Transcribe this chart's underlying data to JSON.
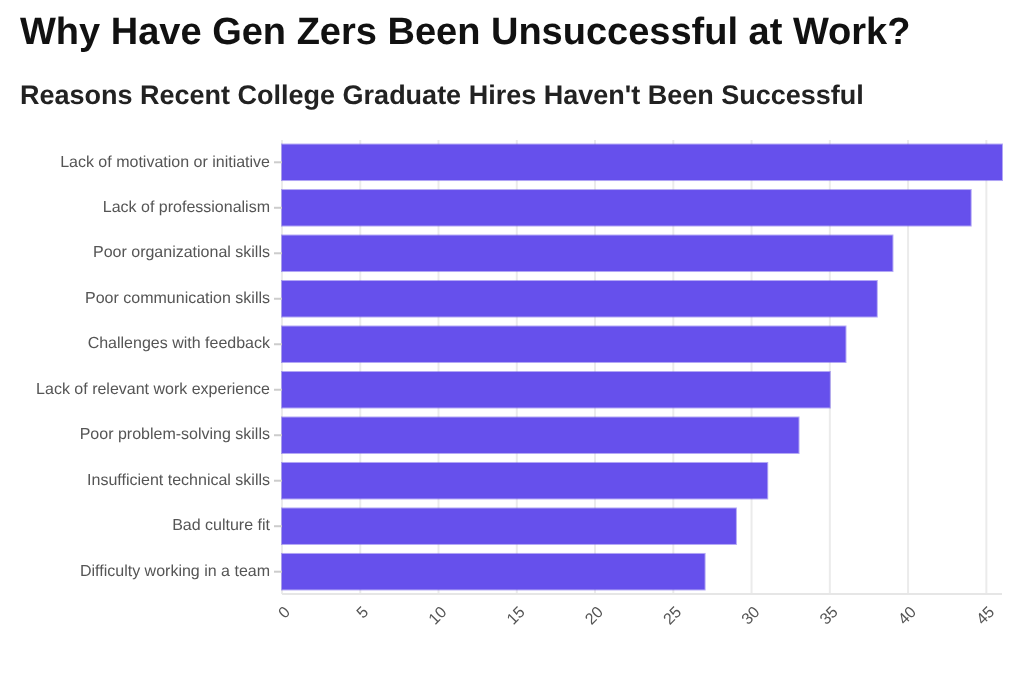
{
  "chart_data": {
    "type": "bar",
    "orientation": "horizontal",
    "title": "Why Have Gen Zers Been Unsuccessful at Work?",
    "subtitle": "Reasons Recent College Graduate Hires Haven't Been Successful",
    "categories": [
      "Lack of motivation or initiative",
      "Lack of professionalism",
      "Poor organizational skills",
      "Poor communication skills",
      "Challenges with feedback",
      "Lack of relevant work experience",
      "Poor problem-solving skills",
      "Insufficient technical skills",
      "Bad culture fit",
      "Difficulty working in a team"
    ],
    "values": [
      46,
      44,
      39,
      38,
      36,
      35,
      33,
      31,
      29,
      27
    ],
    "color": "#6650ec",
    "xlim": [
      0,
      46
    ],
    "xticks": [
      0,
      5,
      10,
      15,
      20,
      25,
      30,
      35,
      40,
      45
    ],
    "grid": "x"
  }
}
